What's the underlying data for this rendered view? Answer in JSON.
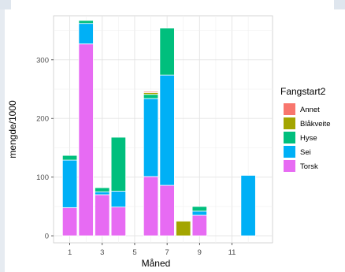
{
  "chart_data": {
    "type": "bar",
    "stacked": true,
    "xlabel": "Måned",
    "ylabel": "mengde/1000",
    "x_ticks": [
      1,
      3,
      5,
      7,
      9,
      11
    ],
    "y_ticks": [
      0,
      100,
      200,
      300
    ],
    "xlim": [
      0,
      13.5
    ],
    "ylim": [
      -12,
      375
    ],
    "grid": true,
    "legend": {
      "title": "Fangstart2",
      "position": "right"
    },
    "months": [
      1,
      2,
      3,
      4,
      6,
      7,
      8,
      9,
      12
    ],
    "series": [
      {
        "name": "Torsk",
        "color": "#E76BF3",
        "values": [
          48,
          327,
          70,
          49,
          101,
          86,
          0,
          35,
          0
        ]
      },
      {
        "name": "Sei",
        "color": "#00B0F6",
        "values": [
          81,
          35,
          5,
          27,
          133,
          188,
          0,
          7,
          103
        ]
      },
      {
        "name": "Hyse",
        "color": "#00BF7D",
        "values": [
          8,
          5,
          7,
          92,
          7,
          80,
          0,
          8,
          0
        ]
      },
      {
        "name": "Blåkveite",
        "color": "#A3A500",
        "values": [
          0,
          0,
          0,
          0,
          3,
          0,
          25,
          0,
          0
        ]
      },
      {
        "name": "Annet",
        "color": "#F8766D",
        "values": [
          0,
          0,
          0,
          0,
          2,
          0,
          0,
          0,
          0
        ]
      }
    ],
    "legend_order": [
      "Annet",
      "Blåkveite",
      "Hyse",
      "Sei",
      "Torsk"
    ]
  }
}
